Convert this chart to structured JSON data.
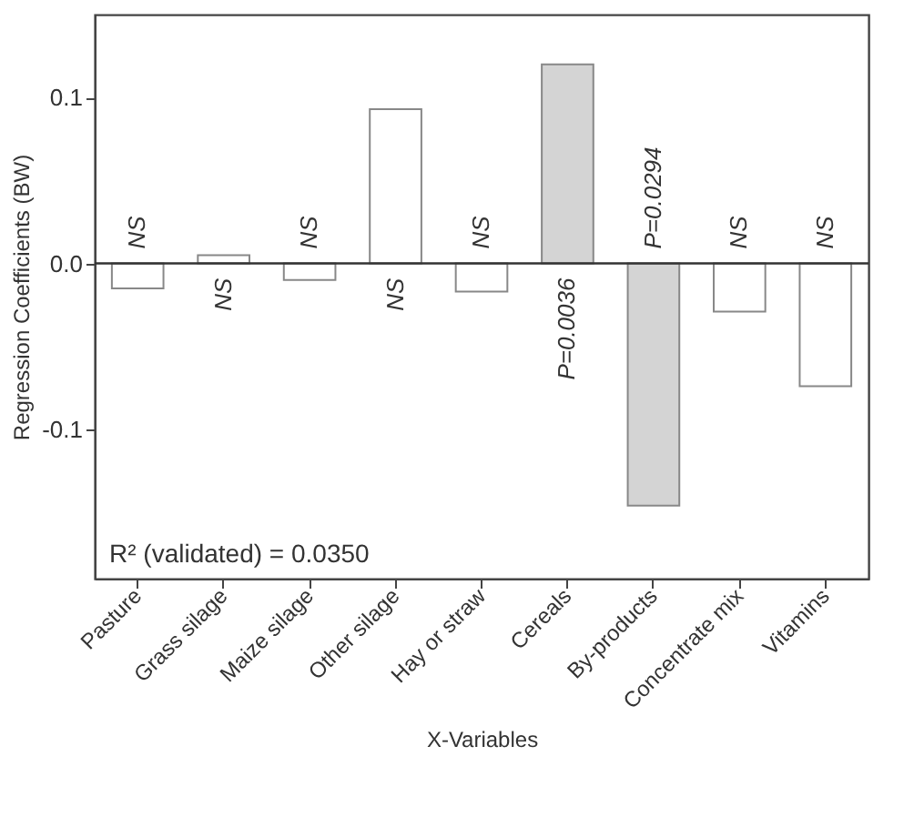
{
  "chart_data": {
    "type": "bar",
    "xlabel": "X-Variables",
    "ylabel": "Regression Coefficients (BW)",
    "categories": [
      "Pasture",
      "Grass silage",
      "Maize silage",
      "Other silage",
      "Hay or straw",
      "Cereals",
      "By-products",
      "Concentrate mix",
      "Vitamins"
    ],
    "values": [
      -0.015,
      0.005,
      -0.01,
      0.093,
      -0.017,
      0.12,
      -0.146,
      -0.029,
      -0.074
    ],
    "colors": [
      "#ffffff",
      "#ffffff",
      "#ffffff",
      "#ffffff",
      "#ffffff",
      "#d4d4d4",
      "#d4d4d4",
      "#ffffff",
      "#ffffff"
    ],
    "ylim": [
      -0.19,
      0.15
    ],
    "yticks": [
      {
        "value": -0.1,
        "label": "-0.1"
      },
      {
        "value": 0,
        "label": "0.0"
      },
      0.1
    ],
    "ref_lines": [
      {
        "axis": "y",
        "value": 0,
        "color": "#333333"
      }
    ],
    "annotations": [
      {
        "text": "NS",
        "x": "Pasture",
        "y": 0
      },
      {
        "text": "NS",
        "x": "Grass silage",
        "y": 0
      },
      {
        "text": "NS",
        "x": "Maize silage",
        "y": 0
      },
      {
        "text": "NS",
        "x": "Other silage",
        "y": 0
      },
      {
        "text": "NS",
        "x": "Hay or straw",
        "y": 0
      },
      {
        "text": "P=0.0036",
        "x": "Cereals",
        "y": 0
      },
      {
        "text": "P=0.0294",
        "x": "By-products",
        "y": 0
      },
      {
        "text": "NS",
        "x": "Concentrate mix",
        "y": 0
      },
      {
        "text": "NS",
        "x": "Vitamins",
        "y": 0
      },
      "R² (validated) = 0.0350"
    ],
    "grid": false
  }
}
